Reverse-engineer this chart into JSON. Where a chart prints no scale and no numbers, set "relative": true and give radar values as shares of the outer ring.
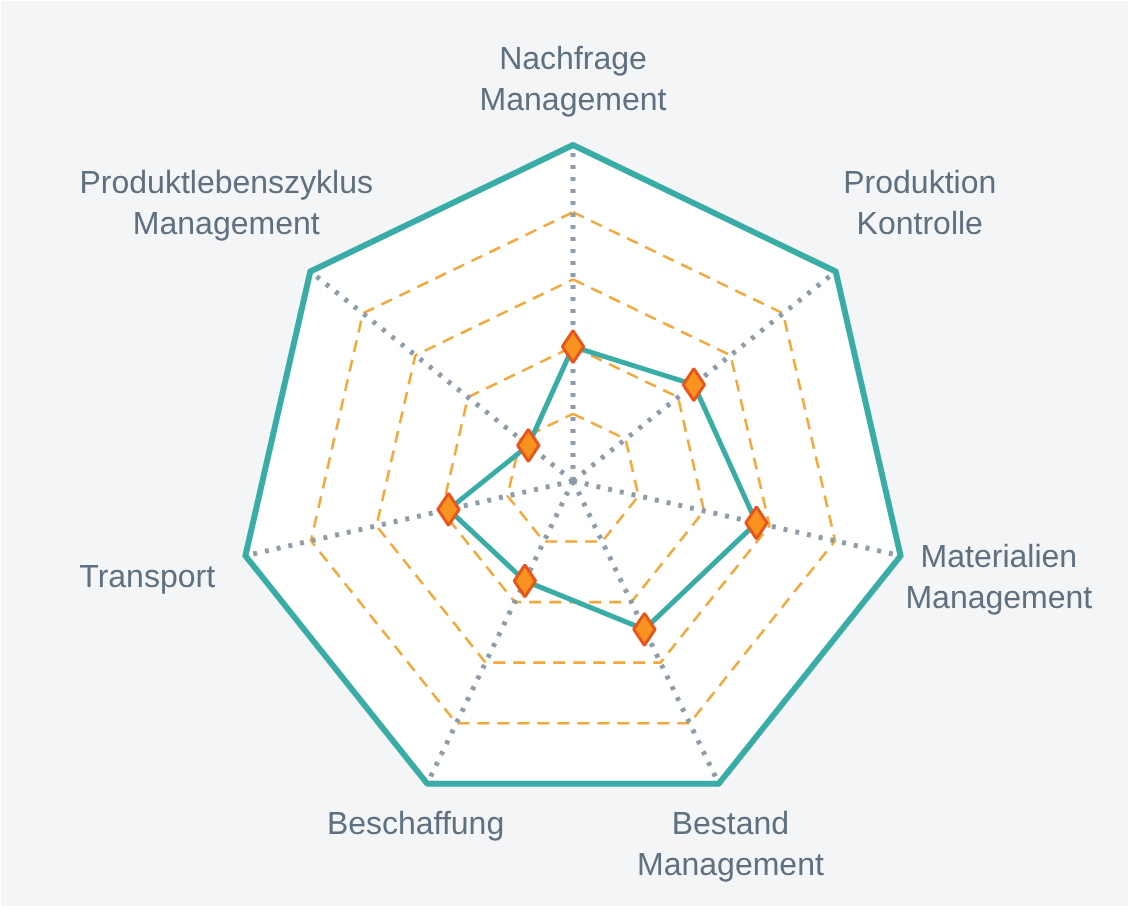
{
  "chart_data": {
    "type": "radar",
    "relative": true,
    "grid": true,
    "marker": "diamond",
    "line_style": "solid",
    "categories": [
      "Nachfrage Management",
      "Produktion Kontrolle",
      "Materialien Management",
      "Bestand Management",
      "Beschaffung",
      "Transport",
      "Produktlebenszyklus Management"
    ],
    "series": [
      {
        "color": "#3aaca6",
        "values": [
          0.4,
          0.46,
          0.56,
          0.49,
          0.33,
          0.38,
          0.17
        ]
      }
    ]
  }
}
